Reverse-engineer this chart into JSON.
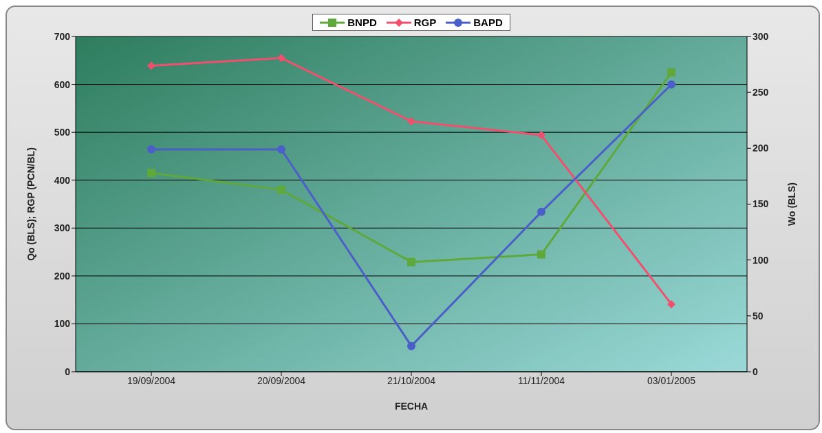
{
  "chart_data": {
    "type": "line",
    "categories": [
      "19/09/2004",
      "20/09/2004",
      "21/10/2004",
      "11/11/2004",
      "03/01/2005"
    ],
    "series": [
      {
        "name": "BNPD",
        "color": "#5fa83c",
        "marker": "square",
        "values": [
          415,
          380,
          229,
          245,
          625
        ]
      },
      {
        "name": "RGP",
        "color": "#f0506e",
        "marker": "diamond",
        "values": [
          639,
          655,
          523,
          494,
          141
        ]
      },
      {
        "name": "BAPD",
        "color": "#4a5fc8",
        "marker": "circle",
        "axis": "y2",
        "values": [
          199,
          199,
          23,
          143,
          257
        ]
      }
    ],
    "xlabel": "FECHA",
    "ylabel": "Qo (BLS); RGP (PCN/BL)",
    "y2label": "Wo (BLS)",
    "ylim": [
      0,
      700
    ],
    "yticks": [
      0,
      100,
      200,
      300,
      400,
      500,
      600,
      700
    ],
    "y2lim": [
      0,
      300
    ],
    "y2ticks": [
      0,
      50,
      100,
      150,
      200,
      250,
      300
    ],
    "grid": "y",
    "legend": "top",
    "line_style": "solid"
  }
}
